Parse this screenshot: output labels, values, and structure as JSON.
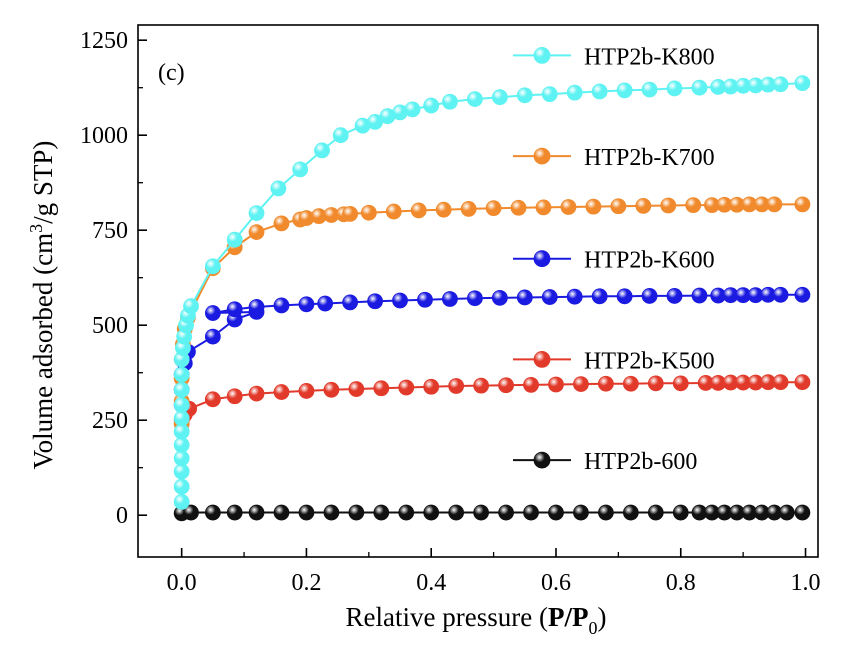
{
  "chart_data": {
    "type": "line",
    "panel_label": "(c)",
    "xlabel": {
      "prefix": "Relative pressure (",
      "bold_part": "P/P",
      "subscript": "0",
      "suffix": ")"
    },
    "ylabel": {
      "prefix": "Volume adsorbed (cm",
      "superscript": "3",
      "suffix": "/g STP)"
    },
    "xlim": [
      -0.07,
      1.02
    ],
    "ylim": [
      -110,
      1290
    ],
    "x_ticks": [
      0.0,
      0.2,
      0.4,
      0.6,
      0.8,
      1.0
    ],
    "x_tick_labels": [
      "0.0",
      "0.2",
      "0.4",
      "0.6",
      "0.8",
      "1.0"
    ],
    "y_ticks": [
      0,
      250,
      500,
      750,
      1000,
      1250
    ],
    "y_tick_labels": [
      "0",
      "250",
      "500",
      "750",
      "1000",
      "1250"
    ],
    "grid": false,
    "legend_placement": "right side, stacked (each entry beside its curve)",
    "series": [
      {
        "name": "HTP2b-K800",
        "color": "#5ef2f2",
        "label_y": 1210,
        "points": [
          [
            0.0,
            35
          ],
          [
            0.0,
            75
          ],
          [
            0.0,
            115
          ],
          [
            0.0,
            150
          ],
          [
            0.0,
            185
          ],
          [
            0.0,
            220
          ],
          [
            0.0,
            255
          ],
          [
            0.0,
            290
          ],
          [
            0.0,
            330
          ],
          [
            0.0,
            370
          ],
          [
            0.0,
            410
          ],
          [
            0.002,
            440
          ],
          [
            0.004,
            470
          ],
          [
            0.007,
            500
          ],
          [
            0.01,
            525
          ],
          [
            0.015,
            550
          ],
          [
            0.05,
            655
          ],
          [
            0.085,
            725
          ],
          [
            0.12,
            795
          ],
          [
            0.155,
            860
          ],
          [
            0.19,
            910
          ],
          [
            0.225,
            960
          ],
          [
            0.255,
            1000
          ],
          [
            0.29,
            1025
          ],
          [
            0.31,
            1035
          ],
          [
            0.33,
            1050
          ],
          [
            0.35,
            1060
          ],
          [
            0.37,
            1068
          ],
          [
            0.4,
            1078
          ],
          [
            0.43,
            1088
          ],
          [
            0.47,
            1095
          ],
          [
            0.51,
            1100
          ],
          [
            0.55,
            1105
          ],
          [
            0.59,
            1108
          ],
          [
            0.63,
            1112
          ],
          [
            0.67,
            1115
          ],
          [
            0.71,
            1118
          ],
          [
            0.75,
            1120
          ],
          [
            0.79,
            1123
          ],
          [
            0.83,
            1125
          ],
          [
            0.86,
            1127
          ],
          [
            0.88,
            1128
          ],
          [
            0.9,
            1130
          ],
          [
            0.92,
            1131
          ],
          [
            0.94,
            1133
          ],
          [
            0.96,
            1134
          ],
          [
            0.995,
            1137
          ]
        ]
      },
      {
        "name": "HTP2b-K700",
        "color": "#f08a2c",
        "label_y": 945,
        "points": [
          [
            0.0,
            240
          ],
          [
            0.0,
            300
          ],
          [
            0.0,
            360
          ],
          [
            0.0,
            410
          ],
          [
            0.002,
            450
          ],
          [
            0.005,
            490
          ],
          [
            0.01,
            520
          ],
          [
            0.05,
            650
          ],
          [
            0.085,
            705
          ],
          [
            0.12,
            745
          ],
          [
            0.16,
            768
          ],
          [
            0.19,
            778
          ],
          [
            0.2,
            782
          ],
          [
            0.22,
            787
          ],
          [
            0.24,
            790
          ],
          [
            0.26,
            792
          ],
          [
            0.27,
            793
          ],
          [
            0.3,
            796
          ],
          [
            0.34,
            799
          ],
          [
            0.38,
            802
          ],
          [
            0.42,
            804
          ],
          [
            0.46,
            806
          ],
          [
            0.5,
            808
          ],
          [
            0.54,
            809
          ],
          [
            0.58,
            810
          ],
          [
            0.62,
            811
          ],
          [
            0.66,
            812
          ],
          [
            0.7,
            813
          ],
          [
            0.74,
            814
          ],
          [
            0.78,
            815
          ],
          [
            0.82,
            816
          ],
          [
            0.85,
            816
          ],
          [
            0.87,
            817
          ],
          [
            0.89,
            817
          ],
          [
            0.91,
            818
          ],
          [
            0.93,
            818
          ],
          [
            0.95,
            818
          ],
          [
            0.995,
            818
          ]
        ]
      },
      {
        "name": "HTP2b-K600",
        "color": "#1a1ae0",
        "label_y": 675,
        "points": [
          [
            0.0,
            290
          ],
          [
            0.0,
            330
          ],
          [
            0.0,
            370
          ],
          [
            0.005,
            400
          ],
          [
            0.01,
            430
          ],
          [
            0.05,
            470
          ],
          [
            0.085,
            515
          ],
          [
            0.12,
            535
          ],
          [
            0.05,
            532
          ],
          [
            0.085,
            542
          ],
          [
            0.12,
            548
          ],
          [
            0.16,
            552
          ],
          [
            0.2,
            555
          ],
          [
            0.23,
            557
          ],
          [
            0.27,
            560
          ],
          [
            0.31,
            563
          ],
          [
            0.35,
            565
          ],
          [
            0.39,
            567
          ],
          [
            0.43,
            569
          ],
          [
            0.47,
            571
          ],
          [
            0.51,
            572
          ],
          [
            0.55,
            573
          ],
          [
            0.59,
            574
          ],
          [
            0.63,
            575
          ],
          [
            0.67,
            576
          ],
          [
            0.71,
            576
          ],
          [
            0.75,
            577
          ],
          [
            0.79,
            577
          ],
          [
            0.83,
            578
          ],
          [
            0.86,
            578
          ],
          [
            0.88,
            579
          ],
          [
            0.9,
            579
          ],
          [
            0.92,
            579
          ],
          [
            0.94,
            580
          ],
          [
            0.96,
            580
          ],
          [
            0.995,
            580
          ]
        ]
      },
      {
        "name": "HTP2b-K500",
        "color": "#e23a2a",
        "label_y": 410,
        "points": [
          [
            0.0,
            250
          ],
          [
            0.005,
            265
          ],
          [
            0.012,
            280
          ],
          [
            0.05,
            305
          ],
          [
            0.085,
            313
          ],
          [
            0.12,
            320
          ],
          [
            0.16,
            324
          ],
          [
            0.2,
            327
          ],
          [
            0.24,
            330
          ],
          [
            0.28,
            332
          ],
          [
            0.32,
            334
          ],
          [
            0.36,
            336
          ],
          [
            0.4,
            338
          ],
          [
            0.44,
            340
          ],
          [
            0.48,
            341
          ],
          [
            0.52,
            342
          ],
          [
            0.56,
            343
          ],
          [
            0.6,
            344
          ],
          [
            0.64,
            345
          ],
          [
            0.68,
            346
          ],
          [
            0.72,
            346
          ],
          [
            0.76,
            347
          ],
          [
            0.8,
            347
          ],
          [
            0.84,
            348
          ],
          [
            0.86,
            348
          ],
          [
            0.88,
            349
          ],
          [
            0.9,
            349
          ],
          [
            0.92,
            349
          ],
          [
            0.94,
            350
          ],
          [
            0.96,
            350
          ],
          [
            0.995,
            350
          ]
        ]
      },
      {
        "name": "HTP2b-600",
        "color": "#111111",
        "label_y": 145,
        "points": [
          [
            0.0,
            5
          ],
          [
            0.015,
            7
          ],
          [
            0.05,
            7
          ],
          [
            0.085,
            7
          ],
          [
            0.12,
            7
          ],
          [
            0.16,
            7
          ],
          [
            0.2,
            7
          ],
          [
            0.24,
            7
          ],
          [
            0.28,
            7
          ],
          [
            0.32,
            7
          ],
          [
            0.36,
            7
          ],
          [
            0.4,
            7
          ],
          [
            0.44,
            7
          ],
          [
            0.48,
            7
          ],
          [
            0.52,
            7
          ],
          [
            0.56,
            7
          ],
          [
            0.6,
            7
          ],
          [
            0.64,
            7
          ],
          [
            0.68,
            7
          ],
          [
            0.72,
            7
          ],
          [
            0.76,
            7
          ],
          [
            0.8,
            7
          ],
          [
            0.83,
            7
          ],
          [
            0.85,
            7
          ],
          [
            0.87,
            7
          ],
          [
            0.89,
            7
          ],
          [
            0.91,
            7
          ],
          [
            0.93,
            7
          ],
          [
            0.95,
            7
          ],
          [
            0.97,
            7
          ],
          [
            0.995,
            7
          ]
        ]
      }
    ]
  }
}
